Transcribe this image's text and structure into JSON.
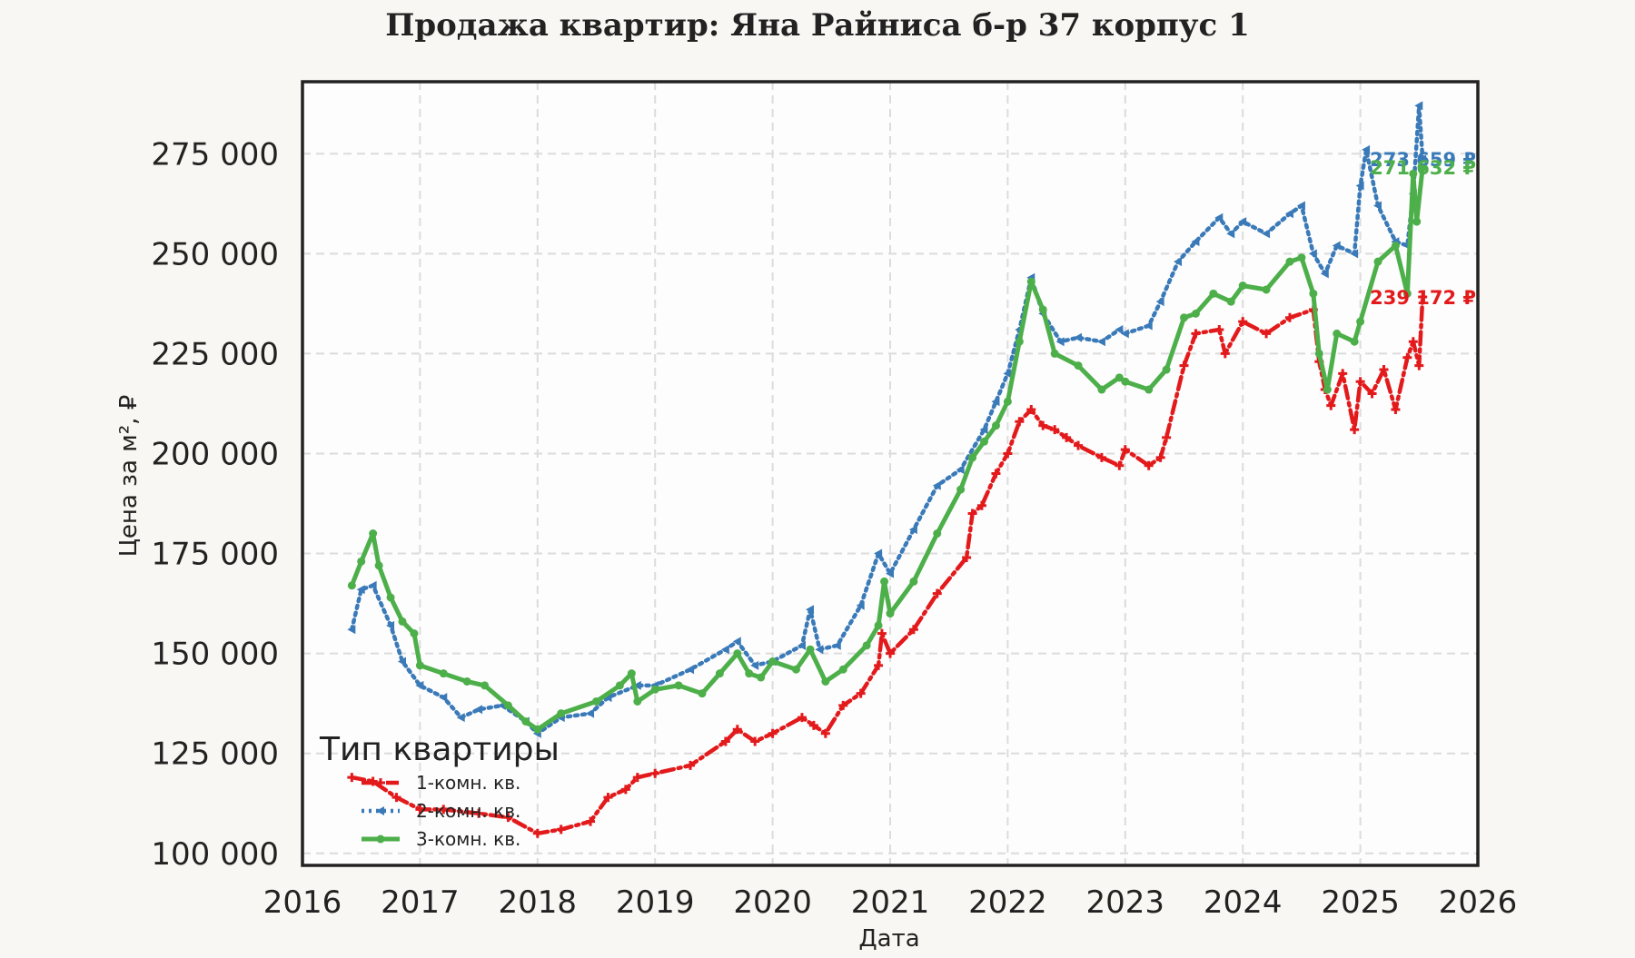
{
  "chart_data": {
    "type": "line",
    "title": "Продажа квартир: Яна Райниса б-р 37 корпус 1",
    "xlabel": "Дата",
    "ylabel": "Цена за м², ₽",
    "xlim": [
      2016,
      2026
    ],
    "ylim": [
      97000,
      293000
    ],
    "x_ticks": [
      2016,
      2017,
      2018,
      2019,
      2020,
      2021,
      2022,
      2023,
      2024,
      2025,
      2026
    ],
    "y_ticks": [
      100000,
      125000,
      150000,
      175000,
      200000,
      225000,
      250000,
      275000
    ],
    "y_tick_labels": [
      "100 000",
      "125 000",
      "150 000",
      "175 000",
      "200 000",
      "225 000",
      "250 000",
      "275 000"
    ],
    "grid": true,
    "legend": {
      "title": "Тип квартиры",
      "placement": "bottom-left"
    },
    "series": [
      {
        "name": "1-комн. кв.",
        "color": "#e31a1c",
        "style": "dashdot-plus",
        "end_label": "239 172 ₽",
        "x": [
          2016.42,
          2016.6,
          2016.8,
          2017.0,
          2017.2,
          2017.5,
          2017.75,
          2018.0,
          2018.2,
          2018.45,
          2018.6,
          2018.75,
          2018.85,
          2019.0,
          2019.3,
          2019.6,
          2019.7,
          2019.85,
          2020.0,
          2020.25,
          2020.35,
          2020.45,
          2020.6,
          2020.75,
          2020.9,
          2020.93,
          2021.0,
          2021.2,
          2021.4,
          2021.65,
          2021.7,
          2021.78,
          2021.9,
          2022.0,
          2022.1,
          2022.2,
          2022.3,
          2022.4,
          2022.5,
          2022.6,
          2022.8,
          2022.95,
          2023.0,
          2023.2,
          2023.3,
          2023.35,
          2023.5,
          2023.6,
          2023.8,
          2023.85,
          2024.0,
          2024.2,
          2024.4,
          2024.6,
          2024.65,
          2024.7,
          2024.75,
          2024.85,
          2024.95,
          2025.0,
          2025.1,
          2025.2,
          2025.3,
          2025.4,
          2025.45,
          2025.5,
          2025.53
        ],
        "values": [
          119000,
          118000,
          114000,
          111000,
          111000,
          110000,
          109000,
          105000,
          106000,
          108000,
          114000,
          116000,
          119000,
          120000,
          122000,
          128000,
          131000,
          128000,
          130000,
          134000,
          132000,
          130000,
          137000,
          140000,
          147000,
          155000,
          150000,
          156000,
          165000,
          174000,
          185000,
          187000,
          195000,
          200000,
          208000,
          211000,
          207000,
          206000,
          204000,
          202000,
          199000,
          197000,
          201000,
          197000,
          199000,
          204000,
          222000,
          230000,
          231000,
          225000,
          233000,
          230000,
          234000,
          236000,
          223000,
          216000,
          212000,
          220000,
          206000,
          218000,
          215000,
          221000,
          211000,
          224000,
          228000,
          222000,
          239172
        ]
      },
      {
        "name": "2-комн. кв.",
        "color": "#3a7ab8",
        "style": "dotted-triangle",
        "end_label": "273 659 ₽",
        "x": [
          2016.42,
          2016.5,
          2016.6,
          2016.75,
          2016.85,
          2017.0,
          2017.2,
          2017.35,
          2017.5,
          2017.7,
          2017.9,
          2018.0,
          2018.2,
          2018.45,
          2018.6,
          2018.85,
          2019.0,
          2019.3,
          2019.6,
          2019.7,
          2019.85,
          2020.0,
          2020.25,
          2020.32,
          2020.4,
          2020.55,
          2020.75,
          2020.9,
          2021.0,
          2021.2,
          2021.4,
          2021.6,
          2021.8,
          2021.9,
          2022.0,
          2022.1,
          2022.2,
          2022.3,
          2022.45,
          2022.6,
          2022.8,
          2022.95,
          2023.0,
          2023.2,
          2023.3,
          2023.45,
          2023.6,
          2023.8,
          2023.9,
          2024.0,
          2024.2,
          2024.4,
          2024.5,
          2024.6,
          2024.7,
          2024.8,
          2024.95,
          2025.0,
          2025.05,
          2025.15,
          2025.3,
          2025.4,
          2025.45,
          2025.5,
          2025.53
        ],
        "values": [
          156000,
          166000,
          167000,
          157000,
          148000,
          142000,
          139000,
          134000,
          136000,
          137000,
          133000,
          130000,
          134000,
          135000,
          139000,
          142000,
          142000,
          146000,
          151000,
          153000,
          147000,
          148000,
          152000,
          161000,
          151000,
          152000,
          162000,
          175000,
          170000,
          181000,
          192000,
          196000,
          206000,
          213000,
          220000,
          231000,
          244000,
          235000,
          228000,
          229000,
          228000,
          231000,
          230000,
          232000,
          238000,
          248000,
          253000,
          259000,
          255000,
          258000,
          255000,
          260000,
          262000,
          250000,
          245000,
          252000,
          250000,
          267000,
          276000,
          262000,
          253000,
          252000,
          265000,
          287000,
          273659
        ]
      },
      {
        "name": "3-комн. кв.",
        "color": "#4daf4a",
        "style": "solid-dot",
        "end_label": "271 632 ₽",
        "x": [
          2016.42,
          2016.5,
          2016.6,
          2016.65,
          2016.75,
          2016.85,
          2016.95,
          2017.0,
          2017.2,
          2017.4,
          2017.55,
          2017.75,
          2017.9,
          2018.0,
          2018.2,
          2018.5,
          2018.7,
          2018.8,
          2018.85,
          2019.0,
          2019.2,
          2019.4,
          2019.55,
          2019.7,
          2019.8,
          2019.9,
          2020.0,
          2020.2,
          2020.32,
          2020.45,
          2020.6,
          2020.8,
          2020.9,
          2020.95,
          2021.0,
          2021.2,
          2021.4,
          2021.6,
          2021.7,
          2021.8,
          2021.9,
          2022.0,
          2022.1,
          2022.2,
          2022.3,
          2022.4,
          2022.6,
          2022.8,
          2022.95,
          2023.0,
          2023.2,
          2023.35,
          2023.5,
          2023.6,
          2023.75,
          2023.9,
          2024.0,
          2024.2,
          2024.4,
          2024.5,
          2024.6,
          2024.65,
          2024.72,
          2024.8,
          2024.95,
          2025.0,
          2025.15,
          2025.3,
          2025.4,
          2025.45,
          2025.48,
          2025.53
        ],
        "values": [
          167000,
          173000,
          180000,
          172000,
          164000,
          158000,
          155000,
          147000,
          145000,
          143000,
          142000,
          137000,
          133000,
          131000,
          135000,
          138000,
          142000,
          145000,
          138000,
          141000,
          142000,
          140000,
          145000,
          150000,
          145000,
          144000,
          148000,
          146000,
          151000,
          143000,
          146000,
          152000,
          157000,
          168000,
          160000,
          168000,
          180000,
          191000,
          199000,
          203000,
          207000,
          213000,
          228000,
          243000,
          236000,
          225000,
          222000,
          216000,
          219000,
          218000,
          216000,
          221000,
          234000,
          235000,
          240000,
          238000,
          242000,
          241000,
          248000,
          249000,
          240000,
          225000,
          216000,
          230000,
          228000,
          233000,
          248000,
          252000,
          240000,
          270000,
          258000,
          271632
        ]
      }
    ]
  }
}
